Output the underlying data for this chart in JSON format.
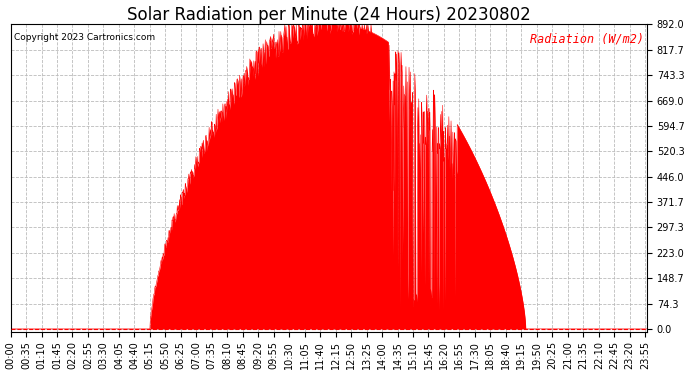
{
  "title": "Solar Radiation per Minute (24 Hours) 20230802",
  "ylabel": "Radiation (W/m2)",
  "ylabel_color": "red",
  "copyright": "Copyright 2023 Cartronics.com",
  "background_color": "#ffffff",
  "plot_bg_color": "#ffffff",
  "fill_color": "red",
  "line_color": "red",
  "ytick_values": [
    0.0,
    74.3,
    148.7,
    223.0,
    297.3,
    371.7,
    446.0,
    520.3,
    594.7,
    669.0,
    743.3,
    817.7,
    892.0
  ],
  "ymax": 892.0,
  "ymin": 0.0,
  "total_minutes": 1440,
  "sunrise_minute": 315,
  "sunset_minute": 1165,
  "peak_value": 892.0,
  "grid_color": "#bbbbbb",
  "dashed_zero_color": "red",
  "title_fontsize": 12,
  "tick_fontsize": 7,
  "xlabel_rotation": 90,
  "xtick_interval": 35,
  "figwidth": 6.9,
  "figheight": 3.75,
  "dpi": 100
}
